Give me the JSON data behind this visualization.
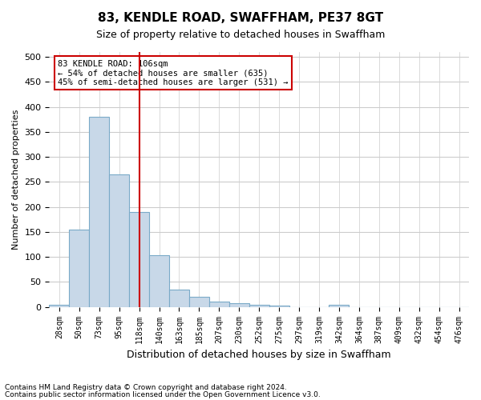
{
  "title": "83, KENDLE ROAD, SWAFFHAM, PE37 8GT",
  "subtitle": "Size of property relative to detached houses in Swaffham",
  "xlabel": "Distribution of detached houses by size in Swaffham",
  "ylabel": "Number of detached properties",
  "bin_labels": [
    "28sqm",
    "50sqm",
    "73sqm",
    "95sqm",
    "118sqm",
    "140sqm",
    "163sqm",
    "185sqm",
    "207sqm",
    "230sqm",
    "252sqm",
    "275sqm",
    "297sqm",
    "319sqm",
    "342sqm",
    "364sqm",
    "387sqm",
    "409sqm",
    "432sqm",
    "454sqm",
    "476sqm"
  ],
  "bar_values": [
    5,
    155,
    380,
    265,
    190,
    103,
    35,
    20,
    10,
    8,
    5,
    2,
    0,
    0,
    5,
    0,
    0,
    0,
    0,
    0,
    0
  ],
  "bar_color": "#c8d8e8",
  "bar_edge_color": "#7aaac8",
  "vline_x": 4,
  "vline_color": "#cc0000",
  "ylim": [
    0,
    510
  ],
  "yticks": [
    0,
    50,
    100,
    150,
    200,
    250,
    300,
    350,
    400,
    450,
    500
  ],
  "annotation_title": "83 KENDLE ROAD: 106sqm",
  "annotation_line1": "← 54% of detached houses are smaller (635)",
  "annotation_line2": "45% of semi-detached houses are larger (531) →",
  "annotation_box_color": "#ffffff",
  "annotation_box_edge": "#cc0000",
  "footer1": "Contains HM Land Registry data © Crown copyright and database right 2024.",
  "footer2": "Contains public sector information licensed under the Open Government Licence v3.0.",
  "background_color": "#ffffff",
  "grid_color": "#cccccc"
}
